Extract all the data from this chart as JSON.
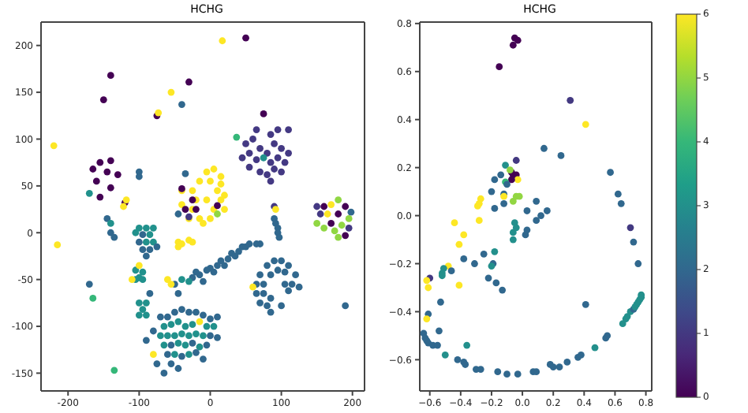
{
  "chart_data": [
    {
      "type": "scatter",
      "title": "HCHG",
      "marker": "circle",
      "xlim": [
        -238,
        217
      ],
      "ylim": [
        -169,
        225
      ],
      "xticks": [
        -200,
        -100,
        0,
        100,
        200
      ],
      "yticks": [
        -150,
        -100,
        -50,
        0,
        50,
        100,
        150,
        200
      ],
      "x": [
        50,
        17,
        -140,
        -30,
        -150,
        -55,
        -40,
        -75,
        -73,
        -220,
        -215,
        75,
        37,
        50,
        60,
        65,
        85,
        95,
        110,
        55,
        70,
        80,
        90,
        100,
        110,
        45,
        65,
        75,
        85,
        95,
        105,
        55,
        70,
        80,
        90,
        100,
        85,
        -165,
        -155,
        -140,
        -145,
        -130,
        -160,
        -140,
        -155,
        -170,
        -120,
        -118,
        -122,
        -100,
        -100,
        -5,
        5,
        15,
        -15,
        0,
        15,
        -40,
        -25,
        10,
        20,
        -20,
        -5,
        15,
        -40,
        -25,
        5,
        20,
        -30,
        -15,
        0,
        -10,
        -40,
        -25,
        -35,
        -20,
        10,
        -30,
        -45,
        -35,
        10,
        150,
        160,
        170,
        180,
        190,
        198,
        155,
        165,
        180,
        195,
        150,
        170,
        185,
        160,
        175,
        190,
        180,
        195,
        90,
        92,
        90,
        92,
        95,
        95,
        97,
        -100,
        -90,
        -80,
        -105,
        -95,
        -85,
        -100,
        -90,
        -80,
        -95,
        -85,
        -90,
        -75,
        -145,
        -140,
        -140,
        -135,
        -45,
        -40,
        -30,
        -25,
        -45,
        -105,
        -95,
        -100,
        -105,
        -95,
        -100,
        -110,
        55,
        45,
        40,
        30,
        25,
        15,
        10,
        0,
        -5,
        -15,
        -25,
        -20,
        -40,
        -50,
        -45,
        -30,
        -10,
        70,
        65,
        5,
        20,
        35,
        50,
        90,
        100,
        110,
        80,
        95,
        105,
        120,
        70,
        85,
        115,
        125,
        65,
        75,
        105,
        60,
        65,
        75,
        85,
        110,
        70,
        80,
        100,
        85,
        190,
        -100,
        -90,
        -95,
        -100,
        -90,
        -85,
        -70,
        -60,
        -50,
        -40,
        -30,
        -20,
        -10,
        0,
        10,
        -65,
        -55,
        -45,
        -35,
        -25,
        -15,
        -5,
        5,
        -70,
        -60,
        -50,
        -40,
        -30,
        -20,
        -10,
        0,
        10,
        -65,
        -55,
        -45,
        -35,
        -25,
        -15,
        -5,
        -60,
        -50,
        -40,
        -30,
        -20,
        -10,
        -55,
        -45,
        -65,
        -80,
        -90,
        -75,
        -80,
        -170,
        -165,
        -135,
        -55,
        -60
      ],
      "values": [
        208,
        205,
        168,
        161,
        142,
        150,
        137,
        125,
        128,
        93,
        -13,
        127,
        102,
        95,
        100,
        110,
        105,
        110,
        110,
        85,
        90,
        85,
        95,
        90,
        85,
        80,
        78,
        80,
        75,
        80,
        75,
        70,
        65,
        62,
        68,
        65,
        55,
        68,
        75,
        77,
        65,
        62,
        55,
        48,
        38,
        42,
        32,
        35,
        28,
        65,
        60,
        65,
        68,
        60,
        55,
        55,
        52,
        45,
        45,
        45,
        40,
        35,
        35,
        35,
        30,
        25,
        25,
        25,
        15,
        15,
        15,
        10,
        47,
        35,
        25,
        25,
        29,
        17,
        20,
        63,
        20,
        28,
        28,
        30,
        35,
        28,
        22,
        20,
        20,
        20,
        15,
        10,
        10,
        8,
        5,
        2,
        -3,
        -5,
        5,
        28,
        25,
        15,
        10,
        5,
        0,
        -5,
        5,
        5,
        5,
        0,
        -2,
        -2,
        -10,
        -10,
        -10,
        -18,
        -18,
        -25,
        -15,
        15,
        10,
        0,
        -5,
        -10,
        -12,
        -8,
        -10,
        -15,
        -40,
        -42,
        -48,
        -50,
        -50,
        -35,
        -50,
        -12,
        -15,
        -20,
        -22,
        -28,
        -30,
        -35,
        -38,
        -40,
        -45,
        -48,
        -42,
        -50,
        -55,
        -65,
        -52,
        -52,
        -12,
        -12,
        -42,
        -35,
        -25,
        -15,
        -30,
        -30,
        -35,
        -35,
        -40,
        -42,
        -45,
        -45,
        -45,
        -55,
        -58,
        -55,
        -55,
        -55,
        -58,
        -65,
        -65,
        -70,
        -62,
        -75,
        -78,
        -78,
        -85,
        -78,
        -75,
        -75,
        -82,
        -88,
        -88,
        -65,
        -90,
        -90,
        -85,
        -82,
        -85,
        -85,
        -88,
        -92,
        -90,
        -100,
        -98,
        -95,
        -100,
        -98,
        -95,
        -100,
        -100,
        -110,
        -110,
        -110,
        -108,
        -110,
        -108,
        -110,
        -110,
        -112,
        -120,
        -120,
        -118,
        -120,
        -118,
        -122,
        -120,
        -130,
        -130,
        -132,
        -130,
        -128,
        -135,
        -140,
        -145,
        -150,
        -130,
        -115,
        -140,
        -105,
        -55,
        -70,
        -147,
        -55,
        -50
      ],
      "colors": [
        "#440154",
        "#fde725",
        "#440154",
        "#440154",
        "#440154",
        "#fde725",
        "#31688e",
        "#440154",
        "#fde725",
        "#fde725",
        "#fde725",
        "#440154",
        "#35b779",
        "#443983",
        "#443983",
        "#443983",
        "#443983",
        "#443983",
        "#443983",
        "#443983",
        "#443983",
        "#443983",
        "#443983",
        "#443983",
        "#443983",
        "#443983",
        "#443983",
        "#21918c",
        "#443983",
        "#443983",
        "#443983",
        "#443983",
        "#443983",
        "#443983",
        "#443983",
        "#443983",
        "#443983",
        "#440154",
        "#440154",
        "#440154",
        "#440154",
        "#440154",
        "#440154",
        "#440154",
        "#440154",
        "#21918c",
        "#440154",
        "#fde725",
        "#fde725",
        "#31688e",
        "#31688e",
        "#fde725",
        "#fde725",
        "#fde725",
        "#fde725",
        "#fde725",
        "#fde725",
        "#fde725",
        "#fde725",
        "#fde725",
        "#fde725",
        "#fde725",
        "#fde725",
        "#fde725",
        "#fde725",
        "#fde725",
        "#fde725",
        "#fde725",
        "#fde725",
        "#fde725",
        "#fde725",
        "#fde725",
        "#440154",
        "#440154",
        "#440154",
        "#440154",
        "#440154",
        "#443983",
        "#31688e",
        "#31688e",
        "#90d743",
        "#443983",
        "#440154",
        "#fde725",
        "#90d743",
        "#440154",
        "#31688e",
        "#443983",
        "#fde725",
        "#440154",
        "#90d743",
        "#90d743",
        "#440154",
        "#90d743",
        "#90d743",
        "#90d743",
        "#440154",
        "#90d743",
        "#443983",
        "#443983",
        "#fde725",
        "#31688e",
        "#31688e",
        "#31688e",
        "#31688e",
        "#31688e",
        "#21918c",
        "#21918c",
        "#21918c",
        "#21918c",
        "#31688e",
        "#21918c",
        "#31688e",
        "#21918c",
        "#21918c",
        "#31688e",
        "#31688e",
        "#31688e",
        "#31688e",
        "#31688e",
        "#21918c",
        "#31688e",
        "#31688e",
        "#fde725",
        "#fde725",
        "#fde725",
        "#fde725",
        "#fde725",
        "#21918c",
        "#21918c",
        "#21918c",
        "#21918c",
        "#21918c",
        "#fde725",
        "#fde725",
        "#31688e",
        "#31688e",
        "#31688e",
        "#31688e",
        "#31688e",
        "#31688e",
        "#31688e",
        "#31688e",
        "#31688e",
        "#31688e",
        "#31688e",
        "#31688e",
        "#21918c",
        "#31688e",
        "#31688e",
        "#21918c",
        "#31688e",
        "#31688e",
        "#31688e",
        "#31688e",
        "#31688e",
        "#31688e",
        "#31688e",
        "#31688e",
        "#31688e",
        "#31688e",
        "#31688e",
        "#31688e",
        "#31688e",
        "#31688e",
        "#31688e",
        "#31688e",
        "#31688e",
        "#31688e",
        "#31688e",
        "#31688e",
        "#31688e",
        "#fde725",
        "#31688e",
        "#31688e",
        "#31688e",
        "#31688e",
        "#31688e",
        "#31688e",
        "#31688e",
        "#31688e",
        "#31688e",
        "#21918c",
        "#21918c",
        "#21918c",
        "#21918c",
        "#21918c",
        "#31688e",
        "#31688e",
        "#31688e",
        "#31688e",
        "#31688e",
        "#31688e",
        "#31688e",
        "#31688e",
        "#31688e",
        "#31688e",
        "#21918c",
        "#21918c",
        "#21918c",
        "#21918c",
        "#21918c",
        "#fde725",
        "#21918c",
        "#21918c",
        "#21918c",
        "#21918c",
        "#21918c",
        "#21918c",
        "#21918c",
        "#21918c",
        "#21918c",
        "#31688e",
        "#31688e",
        "#21918c",
        "#31688e",
        "#21918c",
        "#21918c",
        "#31688e",
        "#21918c",
        "#31688e",
        "#31688e",
        "#21918c",
        "#31688e",
        "#21918c",
        "#31688e",
        "#31688e",
        "#31688e",
        "#31688e",
        "#31688e",
        "#fde725",
        "#31688e",
        "#31688e",
        "#31688e",
        "#31688e",
        "#35b779",
        "#35b779",
        "#fde725",
        "#fde725"
      ]
    },
    {
      "type": "scatter",
      "title": "HCHG",
      "marker": "circle",
      "xlim": [
        -0.665,
        0.838
      ],
      "ylim": [
        -0.73,
        0.806
      ],
      "xticks": [
        {
          "value": -0.6,
          "label": "−0.6"
        },
        {
          "value": -0.4,
          "label": "−0.4"
        },
        {
          "value": -0.2,
          "label": "−0.2"
        },
        {
          "value": 0,
          "label": "0.0"
        },
        {
          "value": 0.2,
          "label": "0.2"
        },
        {
          "value": 0.4,
          "label": "0.4"
        },
        {
          "value": 0.6,
          "label": "0.6"
        },
        {
          "value": 0.8,
          "label": "0.8"
        }
      ],
      "yticks": [
        {
          "value": -0.6,
          "label": "−0.6"
        },
        {
          "value": -0.4,
          "label": "−0.4"
        },
        {
          "value": -0.2,
          "label": "−0.2"
        },
        {
          "value": 0,
          "label": "0.0"
        },
        {
          "value": 0.2,
          "label": "0.2"
        },
        {
          "value": 0.4,
          "label": "0.4"
        },
        {
          "value": 0.6,
          "label": "0.6"
        },
        {
          "value": 0.8,
          "label": "0.8"
        }
      ],
      "clim": [
        0,
        6
      ],
      "cticks": [
        0,
        1,
        2,
        3,
        4,
        5,
        6
      ],
      "x": [
        -0.05,
        -0.03,
        -0.06,
        -0.15,
        0.31,
        0.41,
        0.14,
        0.25,
        0.57,
        -0.04,
        -0.11,
        -0.14,
        -0.18,
        -0.07,
        -0.06,
        -0.04,
        -0.08,
        -0.03,
        -0.07,
        -0.11,
        -0.1,
        -0.12,
        -0.2,
        -0.12,
        -0.06,
        -0.04,
        -0.02,
        -0.12,
        0.09,
        -0.27,
        -0.28,
        -0.29,
        -0.18,
        0.03,
        0.16,
        0.12,
        0.09,
        -0.28,
        -0.05,
        -0.04,
        -0.06,
        0.03,
        0.02,
        -0.06,
        -0.44,
        -0.38,
        -0.41,
        -0.38,
        -0.31,
        -0.25,
        -0.18,
        -0.19,
        -0.2,
        -0.48,
        -0.46,
        -0.51,
        -0.52,
        -0.52,
        -0.6,
        -0.62,
        -0.61,
        -0.41,
        -0.22,
        -0.17,
        -0.13,
        -0.53,
        -0.61,
        -0.62,
        0.41,
        0.7,
        0.62,
        0.64,
        0.72,
        0.75,
        -0.64,
        -0.63,
        -0.62,
        -0.61,
        -0.58,
        -0.55,
        -0.54,
        -0.5,
        -0.36,
        -0.42,
        -0.38,
        -0.37,
        -0.3,
        -0.27,
        -0.16,
        -0.1,
        -0.03,
        0.07,
        0.09,
        0.18,
        0.2,
        0.24,
        0.29,
        0.36,
        0.38,
        0.47,
        0.54,
        0.55,
        0.65,
        0.67,
        0.68,
        0.7,
        0.72,
        0.73,
        0.74,
        0.75,
        0.76,
        0.77,
        0.77
      ],
      "values": [
        0.74,
        0.73,
        0.71,
        0.62,
        0.48,
        0.38,
        0.28,
        0.25,
        0.18,
        0.23,
        0.21,
        0.17,
        0.15,
        0.18,
        0.17,
        0.17,
        0.19,
        0.15,
        0.15,
        0.14,
        0.13,
        0.09,
        0.1,
        0.08,
        0.06,
        0.08,
        0.08,
        0.05,
        0.06,
        0.07,
        0.05,
        0.04,
        0.03,
        0.02,
        0.02,
        0,
        -0.02,
        -0.02,
        -0.03,
        -0.05,
        -0.07,
        -0.06,
        -0.08,
        -0.1,
        -0.03,
        -0.08,
        -0.12,
        -0.18,
        -0.2,
        -0.16,
        -0.15,
        -0.2,
        -0.21,
        -0.21,
        -0.23,
        -0.22,
        -0.24,
        -0.25,
        -0.26,
        -0.27,
        -0.3,
        -0.29,
        -0.26,
        -0.28,
        -0.31,
        -0.36,
        -0.41,
        -0.43,
        -0.37,
        -0.05,
        0.09,
        0.05,
        -0.11,
        -0.2,
        -0.49,
        -0.51,
        -0.52,
        -0.53,
        -0.54,
        -0.54,
        -0.48,
        -0.58,
        -0.54,
        -0.6,
        -0.61,
        -0.62,
        -0.64,
        -0.64,
        -0.65,
        -0.66,
        -0.66,
        -0.65,
        -0.65,
        -0.62,
        -0.63,
        -0.63,
        -0.61,
        -0.59,
        -0.58,
        -0.55,
        -0.51,
        -0.5,
        -0.45,
        -0.43,
        -0.42,
        -0.4,
        -0.39,
        -0.38,
        -0.37,
        -0.36,
        -0.35,
        -0.34,
        -0.33
      ],
      "cvalues": [
        0,
        0,
        0,
        0,
        1,
        6,
        2,
        2,
        2,
        1,
        3,
        2,
        2,
        0,
        0,
        0,
        5,
        6,
        0,
        4,
        2,
        2,
        2,
        6,
        5,
        5,
        5,
        2,
        2,
        6,
        6,
        6,
        2,
        2,
        2,
        2,
        2,
        6,
        3,
        3,
        3,
        2,
        2,
        3,
        6,
        6,
        6,
        2,
        2,
        2,
        3,
        2,
        3,
        6,
        2,
        3,
        3,
        3,
        1,
        6,
        6,
        6,
        2,
        2,
        2,
        2,
        2,
        6,
        2,
        1,
        2,
        2,
        2,
        2,
        2,
        2,
        2,
        2,
        2,
        2,
        2,
        3,
        3,
        2,
        2,
        2,
        2,
        2,
        2,
        2,
        2,
        2,
        2,
        2,
        2,
        2,
        2,
        2,
        2,
        3,
        2,
        2,
        3,
        3,
        3,
        3,
        2,
        3,
        3,
        3,
        3,
        3,
        3
      ]
    }
  ]
}
